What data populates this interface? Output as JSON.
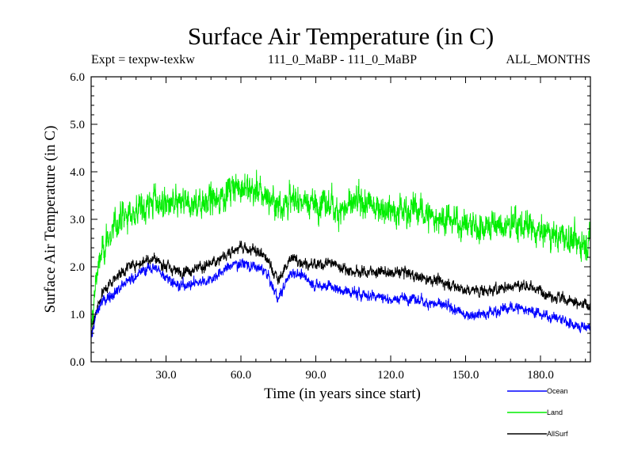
{
  "chart_data": {
    "type": "line",
    "title": "Surface Air Temperature (in C)",
    "subtitle_left": "Expt = texpw-texkw",
    "subtitle_center": "111_0_MaBP - 111_0_MaBP",
    "subtitle_right": "ALL_MONTHS",
    "xlabel": "Time (in years since start)",
    "ylabel": "Surface Air Temperature (in C)",
    "xlim": [
      0,
      200
    ],
    "ylim": [
      0,
      6
    ],
    "xticks": [
      30,
      60,
      90,
      120,
      150,
      180
    ],
    "xtick_labels": [
      "30.0",
      "60.0",
      "90.0",
      "120.0",
      "150.0",
      "180.0"
    ],
    "yticks": [
      0,
      1,
      2,
      3,
      4,
      5,
      6
    ],
    "ytick_labels": [
      "0.0",
      "1.0",
      "2.0",
      "3.0",
      "4.0",
      "5.0",
      "6.0"
    ],
    "legend_position": "bottom-right-outside",
    "series": [
      {
        "name": "Land",
        "color": "#00ee00",
        "noise": 0.45,
        "values": [
          [
            0,
            0.6
          ],
          [
            2,
            1.8
          ],
          [
            5,
            2.4
          ],
          [
            10,
            2.9
          ],
          [
            15,
            3.1
          ],
          [
            20,
            3.2
          ],
          [
            25,
            3.4
          ],
          [
            30,
            3.3
          ],
          [
            35,
            3.3
          ],
          [
            40,
            3.3
          ],
          [
            45,
            3.4
          ],
          [
            50,
            3.4
          ],
          [
            55,
            3.6
          ],
          [
            60,
            3.7
          ],
          [
            65,
            3.6
          ],
          [
            70,
            3.5
          ],
          [
            75,
            3.3
          ],
          [
            80,
            3.4
          ],
          [
            85,
            3.4
          ],
          [
            90,
            3.3
          ],
          [
            95,
            3.3
          ],
          [
            100,
            3.2
          ],
          [
            105,
            3.3
          ],
          [
            110,
            3.3
          ],
          [
            115,
            3.3
          ],
          [
            120,
            3.2
          ],
          [
            125,
            3.2
          ],
          [
            130,
            3.2
          ],
          [
            135,
            3.1
          ],
          [
            140,
            3.0
          ],
          [
            145,
            3.0
          ],
          [
            150,
            2.9
          ],
          [
            155,
            2.8
          ],
          [
            160,
            2.9
          ],
          [
            165,
            2.8
          ],
          [
            170,
            2.9
          ],
          [
            175,
            2.8
          ],
          [
            180,
            2.7
          ],
          [
            185,
            2.7
          ],
          [
            190,
            2.6
          ],
          [
            195,
            2.5
          ],
          [
            200,
            2.6
          ]
        ]
      },
      {
        "name": "AllSurf",
        "color": "#000000",
        "noise": 0.17,
        "values": [
          [
            0,
            0.6
          ],
          [
            2,
            1.1
          ],
          [
            5,
            1.5
          ],
          [
            10,
            1.8
          ],
          [
            15,
            2.0
          ],
          [
            20,
            2.1
          ],
          [
            25,
            2.2
          ],
          [
            30,
            2.0
          ],
          [
            35,
            1.9
          ],
          [
            40,
            1.95
          ],
          [
            45,
            2.0
          ],
          [
            50,
            2.1
          ],
          [
            55,
            2.3
          ],
          [
            60,
            2.4
          ],
          [
            65,
            2.35
          ],
          [
            70,
            2.2
          ],
          [
            75,
            1.7
          ],
          [
            80,
            2.2
          ],
          [
            85,
            2.1
          ],
          [
            90,
            2.0
          ],
          [
            95,
            2.1
          ],
          [
            100,
            2.0
          ],
          [
            105,
            1.9
          ],
          [
            110,
            1.9
          ],
          [
            115,
            1.9
          ],
          [
            120,
            1.85
          ],
          [
            125,
            1.9
          ],
          [
            130,
            1.8
          ],
          [
            135,
            1.75
          ],
          [
            140,
            1.7
          ],
          [
            145,
            1.6
          ],
          [
            150,
            1.5
          ],
          [
            155,
            1.5
          ],
          [
            160,
            1.5
          ],
          [
            165,
            1.55
          ],
          [
            170,
            1.6
          ],
          [
            175,
            1.6
          ],
          [
            180,
            1.5
          ],
          [
            185,
            1.4
          ],
          [
            190,
            1.3
          ],
          [
            195,
            1.2
          ],
          [
            200,
            1.2
          ]
        ]
      },
      {
        "name": "Ocean",
        "color": "#0000ff",
        "noise": 0.16,
        "values": [
          [
            0,
            0.5
          ],
          [
            2,
            1.0
          ],
          [
            5,
            1.3
          ],
          [
            10,
            1.5
          ],
          [
            15,
            1.7
          ],
          [
            20,
            1.9
          ],
          [
            25,
            2.0
          ],
          [
            30,
            1.8
          ],
          [
            35,
            1.6
          ],
          [
            40,
            1.65
          ],
          [
            45,
            1.7
          ],
          [
            50,
            1.8
          ],
          [
            55,
            2.0
          ],
          [
            60,
            2.1
          ],
          [
            65,
            2.0
          ],
          [
            70,
            1.9
          ],
          [
            75,
            1.3
          ],
          [
            80,
            1.9
          ],
          [
            85,
            1.8
          ],
          [
            90,
            1.6
          ],
          [
            95,
            1.6
          ],
          [
            100,
            1.5
          ],
          [
            105,
            1.45
          ],
          [
            110,
            1.4
          ],
          [
            115,
            1.4
          ],
          [
            120,
            1.3
          ],
          [
            125,
            1.35
          ],
          [
            130,
            1.3
          ],
          [
            135,
            1.25
          ],
          [
            140,
            1.2
          ],
          [
            145,
            1.1
          ],
          [
            150,
            1.0
          ],
          [
            155,
            1.0
          ],
          [
            160,
            1.05
          ],
          [
            165,
            1.1
          ],
          [
            170,
            1.15
          ],
          [
            175,
            1.1
          ],
          [
            180,
            1.0
          ],
          [
            185,
            0.95
          ],
          [
            190,
            0.85
          ],
          [
            195,
            0.75
          ],
          [
            200,
            0.7
          ]
        ]
      }
    ],
    "legend": [
      {
        "name": "Ocean",
        "color": "#0000ff"
      },
      {
        "name": "Land",
        "color": "#00ee00"
      },
      {
        "name": "AllSurf",
        "color": "#000000"
      }
    ]
  }
}
